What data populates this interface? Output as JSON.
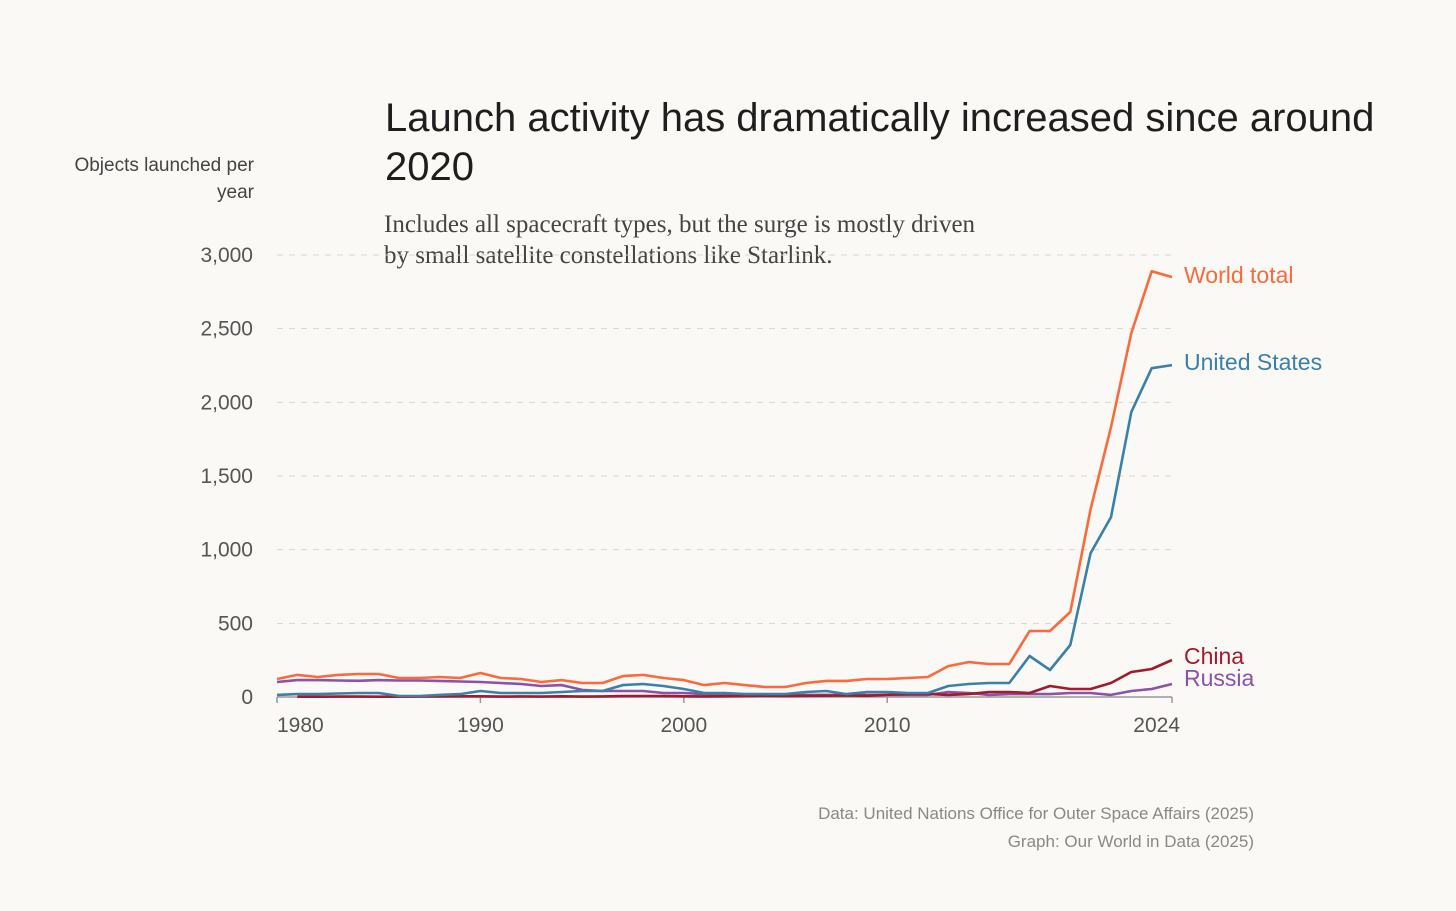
{
  "chart_data": {
    "type": "line",
    "title": "Launch activity has dramatically increased since around 2020",
    "subtitle": "Includes all spacecraft types, but the surge is mostly driven by small satellite constellations like Starlink.",
    "ylabel": "Objects launched per year",
    "xlabel": "",
    "ylim": [
      0,
      3000
    ],
    "xlim": [
      1980,
      2024
    ],
    "yticks": [
      0,
      500,
      1000,
      1500,
      2000,
      2500,
      3000
    ],
    "ytick_labels": [
      "0",
      "500",
      "1,000",
      "1,500",
      "2,000",
      "2,500",
      "3,000"
    ],
    "xticks": [
      1980,
      1990,
      2000,
      2010,
      2024
    ],
    "xtick_labels": [
      "1980",
      "1990",
      "2000",
      "2010",
      "2024"
    ],
    "grid": "horizontal dashed",
    "legend": "line-end labels",
    "x": [
      1980,
      1981,
      1982,
      1983,
      1984,
      1985,
      1986,
      1987,
      1988,
      1989,
      1990,
      1991,
      1992,
      1993,
      1994,
      1995,
      1996,
      1997,
      1998,
      1999,
      2000,
      2001,
      2002,
      2003,
      2004,
      2005,
      2006,
      2007,
      2008,
      2009,
      2010,
      2011,
      2012,
      2013,
      2014,
      2015,
      2016,
      2017,
      2018,
      2019,
      2020,
      2021,
      2022,
      2023,
      2024
    ],
    "series": [
      {
        "name": "World total",
        "color": "#fa6a3c",
        "values": [
          122,
          150,
          136,
          150,
          156,
          156,
          129,
          129,
          136,
          129,
          163,
          129,
          122,
          102,
          115,
          95,
          95,
          142,
          150,
          129,
          115,
          81,
          95,
          81,
          68,
          68,
          95,
          109,
          109,
          122,
          122,
          129,
          136,
          210,
          237,
          224,
          224,
          448,
          448,
          577,
          1275,
          1832,
          2470,
          2890,
          2850
        ]
      },
      {
        "name": "United States",
        "color": "#3a80a8",
        "values": [
          14,
          20,
          20,
          24,
          27,
          27,
          7,
          7,
          14,
          20,
          41,
          27,
          27,
          27,
          34,
          41,
          41,
          81,
          88,
          75,
          54,
          27,
          27,
          20,
          20,
          20,
          34,
          41,
          20,
          34,
          34,
          27,
          27,
          75,
          88,
          95,
          95,
          278,
          183,
          353,
          977,
          1221,
          1934,
          2232,
          2253
        ]
      },
      {
        "name": "China",
        "color": "#a3192d",
        "values": [
          null,
          2,
          2,
          3,
          3,
          2,
          2,
          3,
          4,
          5,
          5,
          3,
          4,
          3,
          5,
          3,
          4,
          6,
          7,
          6,
          5,
          4,
          5,
          6,
          8,
          6,
          8,
          9,
          10,
          8,
          15,
          19,
          21,
          14,
          20,
          34,
          34,
          27,
          75,
          54,
          54,
          95,
          170,
          190,
          251
        ]
      },
      {
        "name": "Russia",
        "color": "#8a52aa",
        "values": [
          102,
          115,
          115,
          112,
          110,
          115,
          112,
          112,
          109,
          105,
          102,
          95,
          88,
          75,
          81,
          48,
          41,
          41,
          41,
          27,
          27,
          20,
          17,
          17,
          14,
          14,
          14,
          14,
          14,
          14,
          14,
          14,
          14,
          34,
          27,
          14,
          20,
          20,
          20,
          27,
          27,
          14,
          41,
          54,
          88
        ]
      }
    ]
  },
  "source_data": "Data:  United Nations Office for Outer Space Affairs (2025)",
  "source_graph": "Graph: Our World in Data (2025)"
}
